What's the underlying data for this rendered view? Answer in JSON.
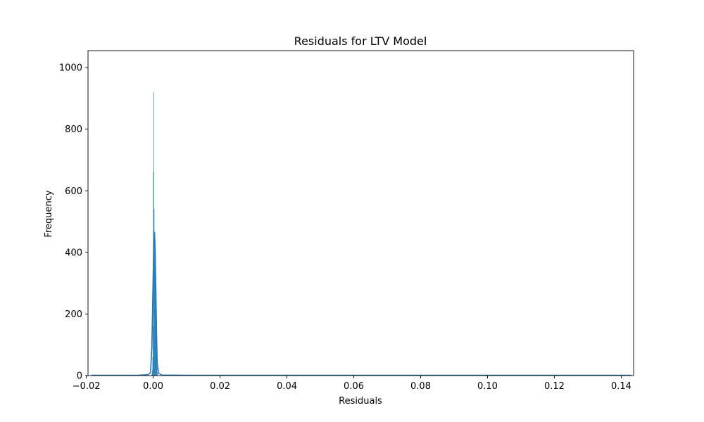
{
  "chart_data": {
    "type": "histogram",
    "title": "Residuals for LTV Model",
    "xlabel": "Residuals",
    "ylabel": "Frequency",
    "xlim": [
      -0.0195,
      0.1437
    ],
    "ylim": [
      0,
      1055
    ],
    "x_ticks": [
      -0.02,
      0.0,
      0.02,
      0.04,
      0.06,
      0.08,
      0.1,
      0.12,
      0.14
    ],
    "x_tick_labels": [
      "−0.02",
      "0.00",
      "0.02",
      "0.04",
      "0.06",
      "0.08",
      "0.10",
      "0.12",
      "0.14"
    ],
    "y_ticks": [
      0,
      200,
      400,
      600,
      800,
      1000
    ],
    "y_tick_labels": [
      "0",
      "200",
      "400",
      "600",
      "800",
      "1000"
    ],
    "bars": [
      {
        "x": -0.0005,
        "width": 0.0001,
        "value": 3
      },
      {
        "x": -0.0004,
        "width": 0.0001,
        "value": 8
      },
      {
        "x": -0.0003,
        "width": 0.0001,
        "value": 18
      },
      {
        "x": -0.0002,
        "width": 0.0001,
        "value": 60
      },
      {
        "x": -0.0001,
        "width": 0.0001,
        "value": 160
      },
      {
        "x": 0.0,
        "width": 0.0001,
        "value": 660
      },
      {
        "x": 0.0001,
        "width": 0.0001,
        "value": 920
      },
      {
        "x": 0.0002,
        "width": 0.0001,
        "value": 540
      },
      {
        "x": 0.0003,
        "width": 0.0001,
        "value": 455
      },
      {
        "x": 0.0004,
        "width": 0.0001,
        "value": 420
      },
      {
        "x": 0.0005,
        "width": 0.0001,
        "value": 380
      },
      {
        "x": 0.0006,
        "width": 0.0001,
        "value": 330
      },
      {
        "x": 0.0007,
        "width": 0.0001,
        "value": 250
      },
      {
        "x": 0.0008,
        "width": 0.0001,
        "value": 160
      },
      {
        "x": 0.0009,
        "width": 0.0001,
        "value": 120
      },
      {
        "x": 0.001,
        "width": 0.0001,
        "value": 60
      },
      {
        "x": 0.0011,
        "width": 0.0001,
        "value": 25
      },
      {
        "x": 0.0012,
        "width": 0.0001,
        "value": 8
      }
    ],
    "kde": {
      "x": [
        -0.0185,
        -0.005,
        -0.0015,
        -0.0008,
        -0.0004,
        0.0,
        0.0002,
        0.0004,
        0.0006,
        0.0008,
        0.001,
        0.0012,
        0.0016,
        0.0025,
        0.01,
        0.05,
        0.1,
        0.143
      ],
      "y": [
        1,
        1,
        3,
        10,
        90,
        330,
        440,
        465,
        400,
        280,
        140,
        40,
        8,
        2,
        1,
        1,
        1,
        1
      ]
    },
    "bar_color": "#1f77b4",
    "bar_opacity": 0.5,
    "line_color": "#1f77b4",
    "grid": false,
    "legend": false
  }
}
